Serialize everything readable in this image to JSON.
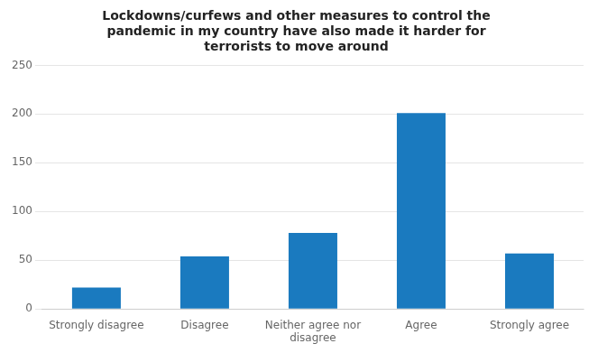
{
  "chart_data": {
    "type": "bar",
    "title": "Lockdowns/curfews and other measures to control the\npandemic in my country have also made it harder for\nterrorists to move around",
    "categories": [
      "Strongly disagree",
      "Disagree",
      "Neither agree nor\ndisagree",
      "Agree",
      "Strongly agree"
    ],
    "values": [
      22,
      54,
      78,
      201,
      57
    ],
    "color": "#1a7abf",
    "ylim": [
      0,
      250
    ],
    "yticks": [
      0,
      50,
      100,
      150,
      200,
      250
    ],
    "grid": true
  }
}
